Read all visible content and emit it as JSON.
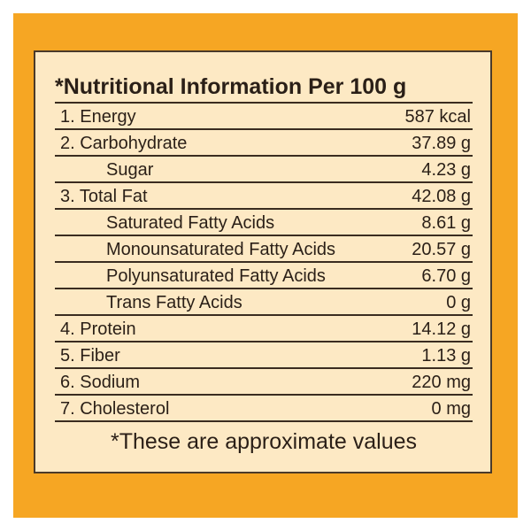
{
  "table": {
    "title": "*Nutritional Information Per 100 g",
    "rows": [
      {
        "label": "1. Energy",
        "value": "587 kcal"
      },
      {
        "label": "2. Carbohydrate",
        "value": "37.89 g",
        "sub": [
          {
            "label": "Sugar",
            "value": "4.23 g"
          }
        ]
      },
      {
        "label": "3. Total Fat",
        "value": "42.08 g",
        "sub": [
          {
            "label": "Saturated Fatty Acids",
            "value": "8.61 g"
          },
          {
            "label": "Monounsaturated Fatty Acids",
            "value": "20.57 g"
          },
          {
            "label": "Polyunsaturated Fatty Acids",
            "value": "6.70 g"
          },
          {
            "label": "Trans Fatty Acids",
            "value": "0 g"
          }
        ]
      },
      {
        "label": "4. Protein",
        "value": "14.12 g"
      },
      {
        "label": "5. Fiber",
        "value": "1.13 g"
      },
      {
        "label": "6. Sodium",
        "value": "220 mg"
      },
      {
        "label": "7. Cholesterol",
        "value": "0 mg"
      }
    ],
    "footnote": "*These are approximate values"
  }
}
